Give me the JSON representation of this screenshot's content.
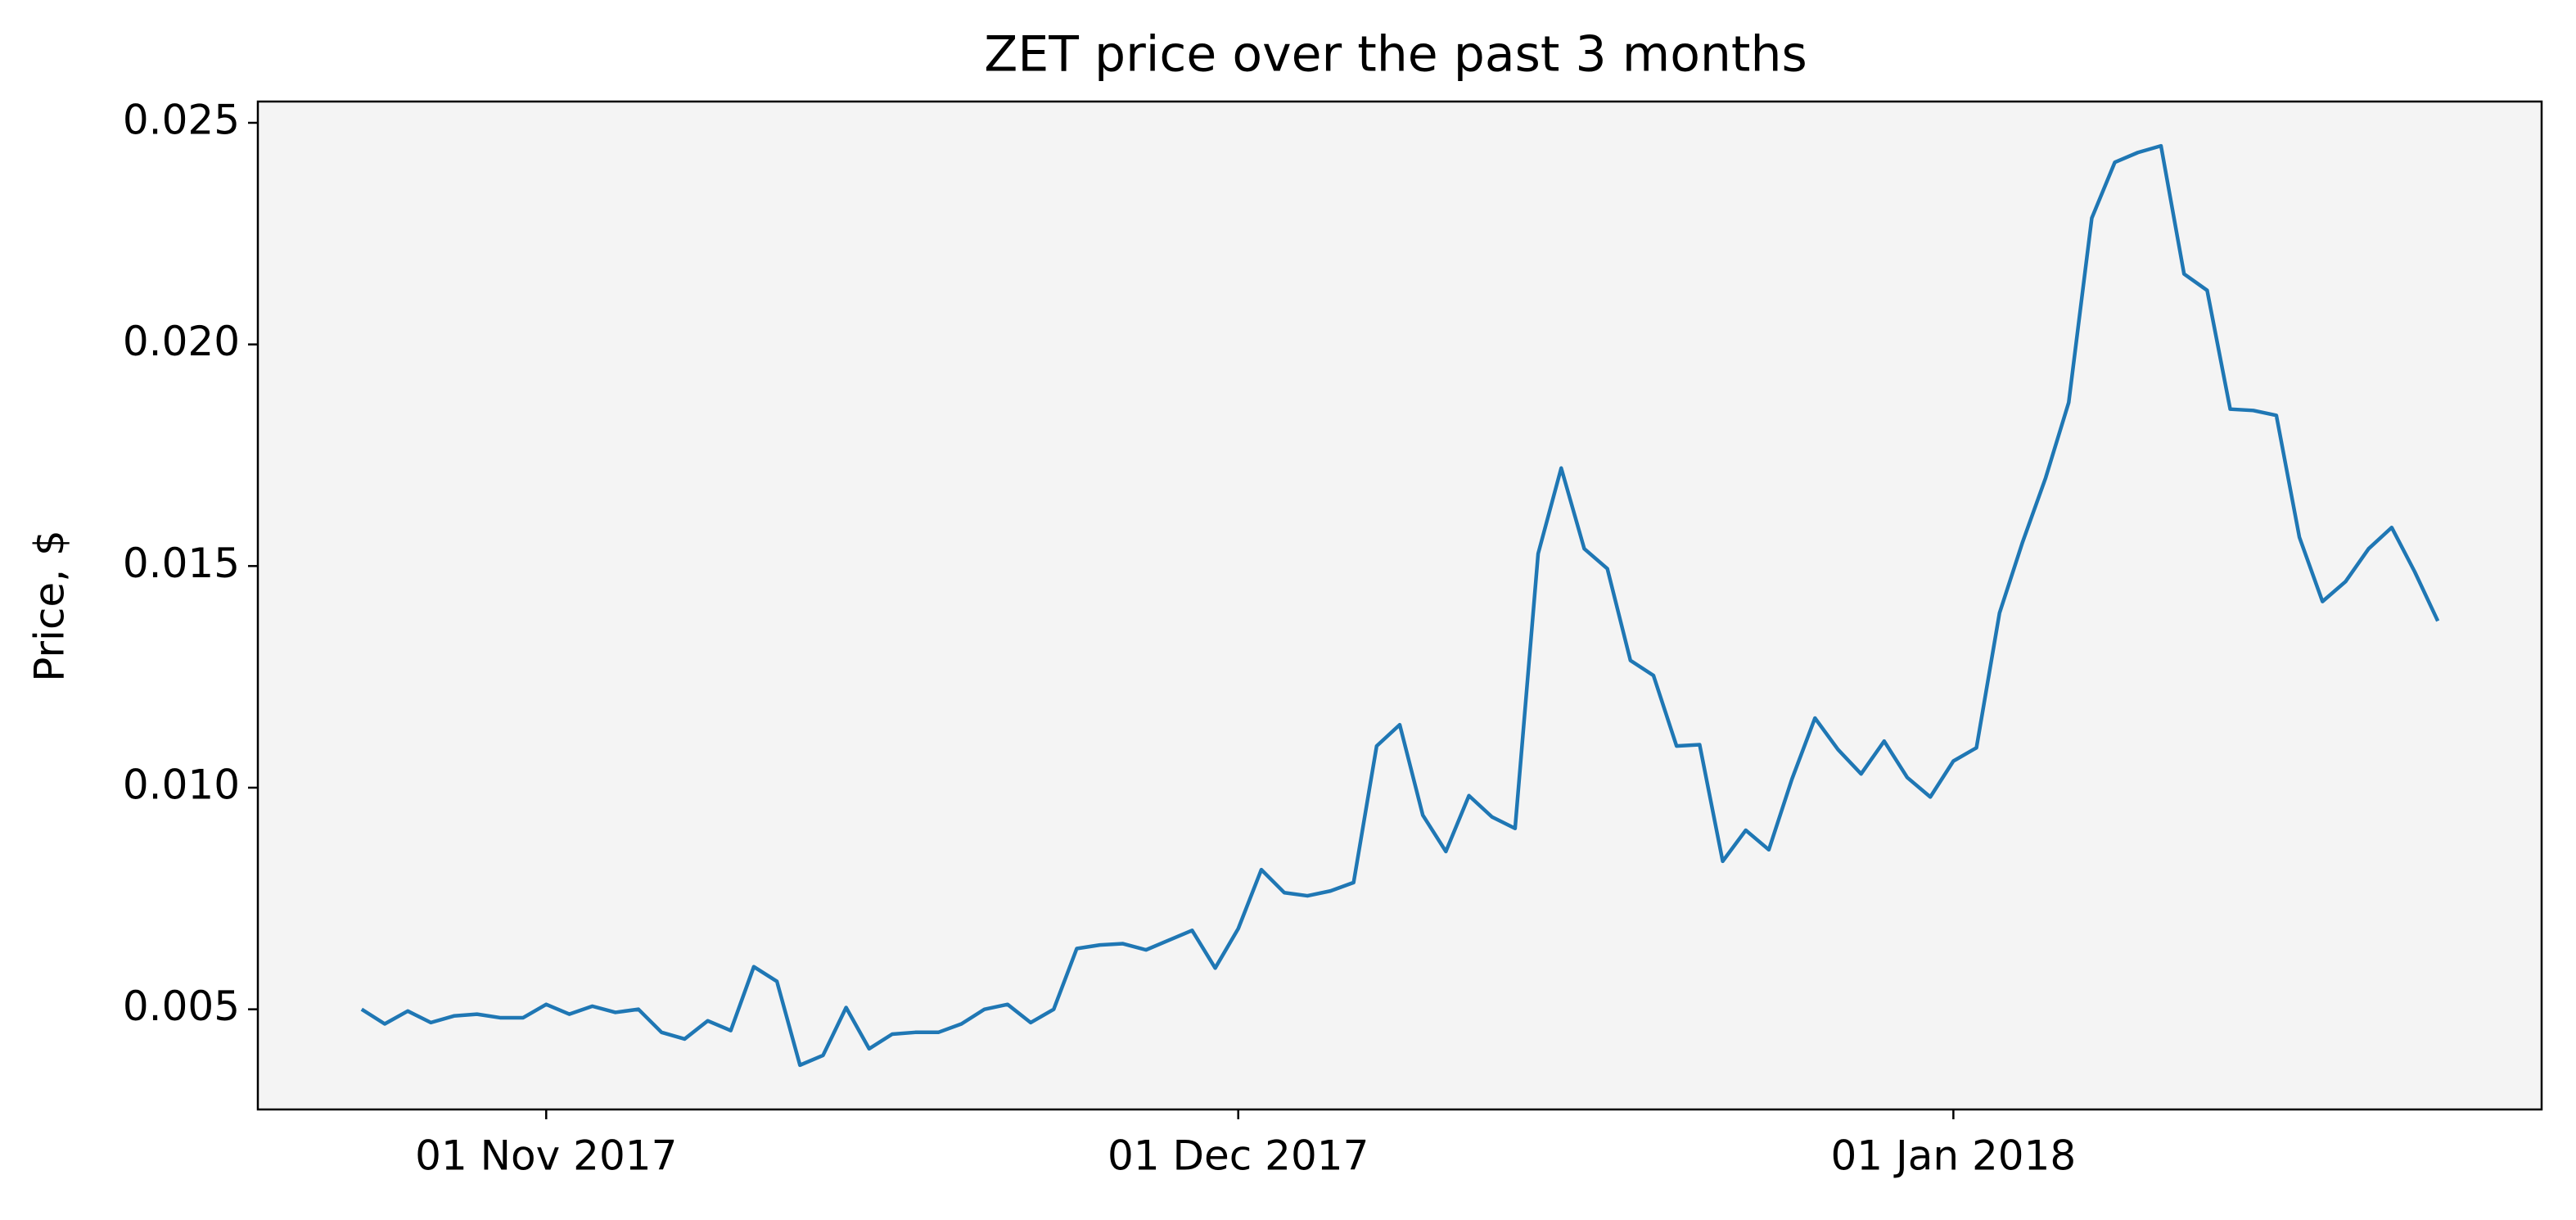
{
  "chart_data": {
    "type": "line",
    "title": "ZET price over the past 3 months",
    "y_label": "Price, $",
    "x": [
      "2017-10-24",
      "2017-10-25",
      "2017-10-26",
      "2017-10-27",
      "2017-10-28",
      "2017-10-29",
      "2017-10-30",
      "2017-10-31",
      "2017-11-01",
      "2017-11-02",
      "2017-11-03",
      "2017-11-04",
      "2017-11-05",
      "2017-11-06",
      "2017-11-07",
      "2017-11-08",
      "2017-11-09",
      "2017-11-10",
      "2017-11-11",
      "2017-11-12",
      "2017-11-13",
      "2017-11-14",
      "2017-11-15",
      "2017-11-16",
      "2017-11-17",
      "2017-11-18",
      "2017-11-19",
      "2017-11-20",
      "2017-11-21",
      "2017-11-22",
      "2017-11-23",
      "2017-11-24",
      "2017-11-25",
      "2017-11-26",
      "2017-11-27",
      "2017-11-28",
      "2017-11-29",
      "2017-11-30",
      "2017-12-01",
      "2017-12-02",
      "2017-12-03",
      "2017-12-04",
      "2017-12-05",
      "2017-12-06",
      "2017-12-07",
      "2017-12-08",
      "2017-12-09",
      "2017-12-10",
      "2017-12-11",
      "2017-12-12",
      "2017-12-13",
      "2017-12-14",
      "2017-12-15",
      "2017-12-16",
      "2017-12-17",
      "2017-12-18",
      "2017-12-19",
      "2017-12-20",
      "2017-12-21",
      "2017-12-22",
      "2017-12-23",
      "2017-12-24",
      "2017-12-25",
      "2017-12-26",
      "2017-12-27",
      "2017-12-28",
      "2017-12-29",
      "2017-12-30",
      "2017-12-31",
      "2018-01-01",
      "2018-01-02",
      "2018-01-03",
      "2018-01-04",
      "2018-01-05",
      "2018-01-06",
      "2018-01-07",
      "2018-01-08",
      "2018-01-09",
      "2018-01-10",
      "2018-01-11",
      "2018-01-12",
      "2018-01-13",
      "2018-01-14",
      "2018-01-15",
      "2018-01-16",
      "2018-01-17",
      "2018-01-18",
      "2018-01-19",
      "2018-01-20",
      "2018-01-21",
      "2018-01-22"
    ],
    "values": [
      0.005,
      0.00467,
      0.00496,
      0.0047,
      0.00485,
      0.00489,
      0.00481,
      0.00481,
      0.00511,
      0.00489,
      0.00507,
      0.00493,
      0.005,
      0.00448,
      0.00433,
      0.00474,
      0.00452,
      0.00596,
      0.00563,
      0.00374,
      0.00396,
      0.00504,
      0.00411,
      0.00444,
      0.00448,
      0.00448,
      0.00467,
      0.005,
      0.00511,
      0.0047,
      0.005,
      0.00637,
      0.00645,
      0.00648,
      0.00634,
      0.00656,
      0.00678,
      0.00593,
      0.00682,
      0.00815,
      0.00763,
      0.00756,
      0.00767,
      0.00786,
      0.01094,
      0.01142,
      0.00938,
      0.00856,
      0.00982,
      0.00934,
      0.00908,
      0.01528,
      0.01721,
      0.01539,
      0.01494,
      0.01287,
      0.01253,
      0.01094,
      0.01097,
      0.00834,
      0.00904,
      0.0086,
      0.01019,
      0.01157,
      0.01086,
      0.01031,
      0.01105,
      0.01023,
      0.00979,
      0.0106,
      0.0109,
      0.01394,
      0.01554,
      0.01699,
      0.01869,
      0.02285,
      0.02411,
      0.02433,
      0.02448,
      0.02159,
      0.02122,
      0.01854,
      0.01851,
      0.0184,
      0.01565,
      0.0142,
      0.01465,
      0.01539,
      0.01587,
      0.01487,
      0.01376
    ],
    "color": "#1f77b4",
    "background": "#f4f4f4",
    "xlim": [
      "2017-10-19T12:00Z",
      "2018-01-26T12:00Z"
    ],
    "xticks": [
      {
        "value": "2017-11-01",
        "label": "01 Nov 2017"
      },
      {
        "value": "2017-12-01",
        "label": "01 Dec 2017"
      },
      {
        "value": "2018-01-01",
        "label": "01 Jan 2018"
      }
    ],
    "ylim": [
      0.00274,
      0.02548
    ],
    "yticks": [
      0.005,
      {
        "value": 0.01,
        "label": "0.010"
      },
      {
        "value": 0.015,
        "label": "0.015"
      },
      {
        "value": 0.02,
        "label": "0.020"
      },
      {
        "value": 0.025,
        "label": "0.025"
      }
    ]
  }
}
